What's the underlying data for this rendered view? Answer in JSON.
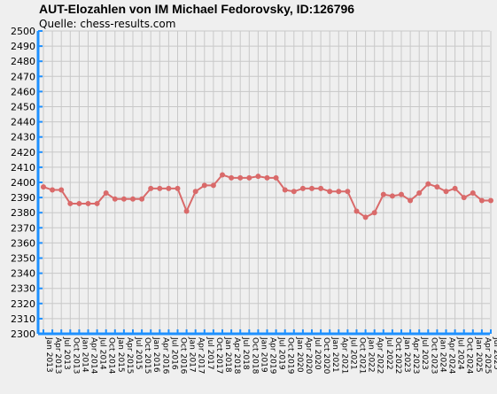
{
  "chart_data": {
    "type": "line",
    "title": "AUT-Elozahlen von IM Michael Fedorovsky, ID:126796",
    "subtitle": "Quelle: chess-results.com",
    "xlabel": "",
    "ylabel": "",
    "ylim": [
      2300,
      2500
    ],
    "ytick_step": 10,
    "grid": true,
    "colors": {
      "line": "#d96a6a",
      "axis": "#1e90ff",
      "grid": "#c8c8c8",
      "background": "#efefef"
    },
    "x": [
      "Jan 2013",
      "Apr 2013",
      "Jul 2013",
      "Oct 2013",
      "Jan 2014",
      "Apr 2014",
      "Jul 2014",
      "Oct 2014",
      "Jan 2015",
      "Apr 2015",
      "Jul 2015",
      "Oct 2015",
      "Jan 2016",
      "Apr 2016",
      "Jul 2016",
      "Oct 2016",
      "Jan 2017",
      "Apr 2017",
      "Jul 2017",
      "Oct 2017",
      "Jan 2018",
      "Apr 2018",
      "Jul 2018",
      "Oct 2018",
      "Jan 2019",
      "Apr 2019",
      "Jul 2019",
      "Oct 2019",
      "Jan 2020",
      "Apr 2020",
      "Jul 2020",
      "Oct 2020",
      "Jan 2021",
      "Apr 2021",
      "Jul 2021",
      "Oct 2021",
      "Jan 2022",
      "Apr 2022",
      "Jul 2022",
      "Oct 2022",
      "Jan 2023",
      "Apr 2023",
      "Jul 2023",
      "Oct 2023",
      "Jan 2024",
      "Apr 2024",
      "Jul 2024",
      "Oct 2024",
      "Jan 2025",
      "Apr 2025",
      "Jul 2025"
    ],
    "values": [
      2397,
      2395,
      2395,
      2386,
      2386,
      2386,
      2386,
      2393,
      2389,
      2389,
      2389,
      2389,
      2396,
      2396,
      2396,
      2396,
      2381,
      2394,
      2398,
      2398,
      2405,
      2403,
      2403,
      2403,
      2404,
      2403,
      2403,
      2395,
      2394,
      2396,
      2396,
      2396,
      2394,
      2394,
      2394,
      2381,
      2377,
      2380,
      2392,
      2391,
      2392,
      2388,
      2393,
      2399,
      2397,
      2394,
      2396,
      2390,
      2393,
      2388,
      2388
    ]
  }
}
